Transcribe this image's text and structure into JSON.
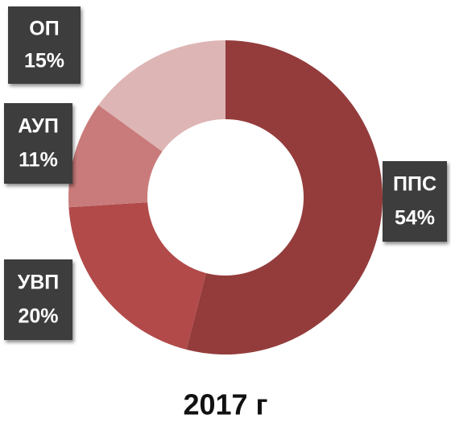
{
  "chart_data": {
    "type": "donut",
    "title": "2017 г",
    "categories": [
      "ППС",
      "УВП",
      "АУП",
      "ОП"
    ],
    "values": [
      54,
      20,
      11,
      15
    ],
    "value_labels": [
      "54%",
      "20%",
      "11%",
      "15%"
    ],
    "colors": [
      "#943c3c",
      "#b24a4a",
      "#c97b7b",
      "#deb5b5"
    ]
  }
}
